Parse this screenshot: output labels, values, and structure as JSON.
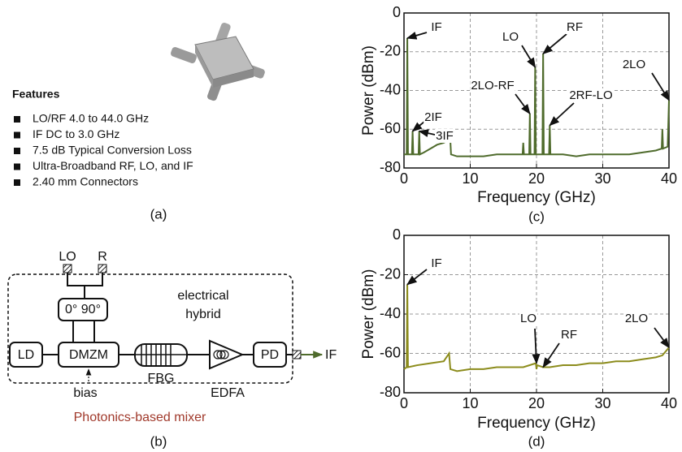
{
  "panel_a": {
    "features_title": "Features",
    "features": [
      "LO/RF 4.0 to 44.0 GHz",
      "IF DC to 3.0 GHz",
      "7.5 dB Typical Conversion Loss",
      "Ultra-Broadband RF, LO, and IF",
      "2.40 mm Connectors"
    ],
    "caption": "(a)"
  },
  "panel_b": {
    "nodes": [
      "LO",
      "R",
      "0° 90°",
      "LD",
      "DMZM",
      "FBG",
      "EDFA",
      "PD",
      "IF",
      "bias"
    ],
    "hybrid_label": [
      "electrical",
      "hybrid"
    ],
    "box_label": "Photonics-based mixer",
    "caption": "(b)"
  },
  "chart_data": [
    {
      "type": "line",
      "xlabel": "Frequency (GHz)",
      "ylabel": "Power (dBm)",
      "caption": "(c)",
      "xlim": [
        0,
        40
      ],
      "ylim": [
        -80,
        0
      ],
      "xticks": [
        0,
        10,
        20,
        30,
        40
      ],
      "yticks": [
        0,
        -20,
        -40,
        -60,
        -80
      ],
      "grid": true,
      "x": [
        0,
        0.4,
        0.5,
        0.6,
        1.2,
        1.3,
        1.4,
        2.2,
        2.3,
        2.4,
        3,
        4,
        5,
        6,
        6.5,
        7,
        7.1,
        8,
        10,
        12,
        14,
        16,
        17.9,
        18,
        18.1,
        18.9,
        19,
        19.1,
        19.7,
        19.8,
        19.9,
        20.9,
        21,
        21.1,
        21.9,
        22,
        22.1,
        24,
        26,
        28,
        30,
        32,
        34,
        36,
        38,
        38.9,
        39,
        39.1,
        39.8,
        40
      ],
      "series": [
        {
          "color": "#4f6b2c",
          "values": [
            -73,
            -73,
            -13,
            -73,
            -73,
            -61,
            -73,
            -73,
            -61,
            -73,
            -72,
            -70,
            -68,
            -67,
            -66,
            -66,
            -73,
            -74,
            -74,
            -74,
            -73,
            -73,
            -73,
            -67,
            -73,
            -73,
            -52,
            -73,
            -73,
            -28,
            -73,
            -73,
            -21,
            -73,
            -73,
            -58,
            -73,
            -73,
            -74,
            -73,
            -73,
            -73,
            -73,
            -72,
            -71,
            -70,
            -60,
            -70,
            -69,
            -45
          ]
        }
      ],
      "annotations": [
        {
          "text": "IF",
          "x": 0.5,
          "y": -13
        },
        {
          "text": "2IF",
          "x": 1.3,
          "y": -61
        },
        {
          "text": "3IF",
          "x": 2.3,
          "y": -61
        },
        {
          "text": "LO",
          "x": 19.8,
          "y": -28
        },
        {
          "text": "RF",
          "x": 21,
          "y": -21
        },
        {
          "text": "2LO-RF",
          "x": 19,
          "y": -52
        },
        {
          "text": "2RF-LO",
          "x": 22,
          "y": -58
        },
        {
          "text": "2LO",
          "x": 40,
          "y": -45
        }
      ]
    },
    {
      "type": "line",
      "xlabel": "Frequency (GHz)",
      "ylabel": "Power (dBm)",
      "caption": "(d)",
      "xlim": [
        0,
        40
      ],
      "ylim": [
        -80,
        0
      ],
      "xticks": [
        0,
        10,
        20,
        30,
        40
      ],
      "yticks": [
        0,
        -20,
        -40,
        -60,
        -80
      ],
      "grid": true,
      "x": [
        0,
        0.4,
        0.5,
        0.6,
        2,
        4,
        6,
        6.8,
        7,
        8,
        10,
        12,
        14,
        16,
        18,
        19.9,
        20,
        20.1,
        21,
        22,
        24,
        26,
        28,
        30,
        32,
        34,
        36,
        38,
        39,
        40
      ],
      "series": [
        {
          "color": "#8c8c1c",
          "values": [
            -68,
            -67,
            -25,
            -67,
            -66,
            -65,
            -64,
            -60,
            -68,
            -69,
            -68,
            -68,
            -67,
            -67,
            -67,
            -65,
            -68,
            -66,
            -67,
            -67,
            -66,
            -66,
            -65,
            -65,
            -64,
            -64,
            -63,
            -62,
            -61,
            -57
          ]
        }
      ],
      "annotations": [
        {
          "text": "IF",
          "x": 0.5,
          "y": -25
        },
        {
          "text": "LO",
          "x": 20,
          "y": -65
        },
        {
          "text": "RF",
          "x": 21,
          "y": -67
        },
        {
          "text": "2LO",
          "x": 40,
          "y": -57
        }
      ]
    }
  ]
}
